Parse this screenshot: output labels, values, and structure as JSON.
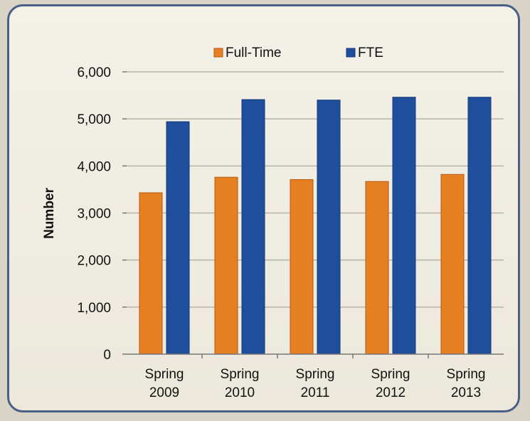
{
  "chart_data": {
    "type": "bar",
    "categories": [
      [
        "Spring",
        "2009"
      ],
      [
        "Spring",
        "2010"
      ],
      [
        "Spring",
        "2011"
      ],
      [
        "Spring",
        "2012"
      ],
      [
        "Spring",
        "2013"
      ]
    ],
    "series": [
      {
        "name": "Full-Time",
        "color": "#e67e22",
        "values": [
          3430,
          3760,
          3710,
          3670,
          3820
        ]
      },
      {
        "name": "FTE",
        "color": "#1f4e9c",
        "values": [
          4940,
          5410,
          5400,
          5460,
          5460
        ]
      }
    ],
    "ylabel": "Number",
    "ylim": [
      0,
      6000
    ],
    "yticks": [
      "0",
      "1,000",
      "2,000",
      "3,000",
      "4,000",
      "5,000",
      "6,000"
    ],
    "grid": true,
    "legend": "top-center"
  }
}
